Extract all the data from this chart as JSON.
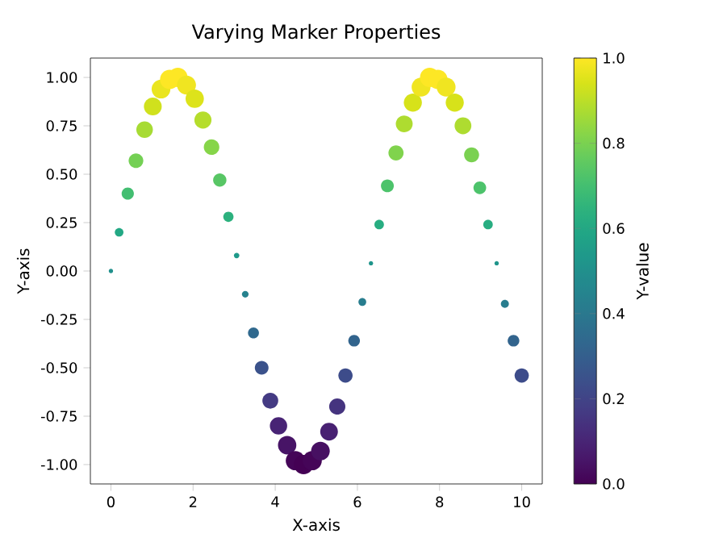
{
  "chart_data": {
    "type": "bubble",
    "title": "Varying Marker Properties",
    "xlabel": "X-axis",
    "ylabel": "Y-axis",
    "clabel": "Y-value",
    "x": [
      0,
      0.2,
      0.41,
      0.61,
      0.82,
      1.02,
      1.22,
      1.43,
      1.63,
      1.84,
      2.04,
      2.24,
      2.45,
      2.65,
      2.86,
      3.06,
      3.27,
      3.47,
      3.67,
      3.88,
      4.08,
      4.29,
      4.49,
      4.69,
      4.9,
      5.1,
      5.31,
      5.51,
      5.71,
      5.92,
      6.12,
      6.33,
      6.53,
      6.73,
      6.94,
      7.14,
      7.35,
      7.55,
      7.76,
      7.96,
      8.16,
      8.37,
      8.57,
      8.78,
      8.98,
      9.18,
      9.39,
      9.59,
      9.8,
      10
    ],
    "values": [
      0,
      0.2,
      0.4,
      0.57,
      0.73,
      0.85,
      0.94,
      0.99,
      1.0,
      0.96,
      0.89,
      0.78,
      0.64,
      0.47,
      0.28,
      0.08,
      -0.12,
      -0.32,
      -0.5,
      -0.67,
      -0.8,
      -0.9,
      -0.98,
      -1.0,
      -0.98,
      -0.93,
      -0.83,
      -0.7,
      -0.54,
      -0.36,
      -0.16,
      0.04,
      0.24,
      0.44,
      0.61,
      0.76,
      0.87,
      0.95,
      1.0,
      0.99,
      0.95,
      0.87,
      0.75,
      0.6,
      0.43,
      0.24,
      0.04,
      -0.17,
      -0.36,
      -0.54
    ],
    "sizes": [
      0.05,
      0.2,
      0.4,
      0.57,
      0.73,
      0.85,
      0.94,
      0.99,
      1.0,
      0.96,
      0.89,
      0.78,
      0.64,
      0.47,
      0.28,
      0.08,
      0.12,
      0.32,
      0.5,
      0.67,
      0.8,
      0.9,
      0.98,
      1.0,
      0.98,
      0.93,
      0.83,
      0.7,
      0.54,
      0.36,
      0.16,
      0.05,
      0.24,
      0.44,
      0.61,
      0.76,
      0.87,
      0.95,
      1.0,
      0.99,
      0.95,
      0.87,
      0.75,
      0.6,
      0.43,
      0.24,
      0.05,
      0.17,
      0.36,
      0.54
    ],
    "cvalues": [
      0.5,
      0.6,
      0.7,
      0.79,
      0.87,
      0.93,
      0.97,
      1.0,
      1.0,
      0.98,
      0.95,
      0.89,
      0.82,
      0.74,
      0.64,
      0.54,
      0.44,
      0.34,
      0.25,
      0.17,
      0.1,
      0.05,
      0.01,
      0.0,
      0.01,
      0.04,
      0.09,
      0.15,
      0.23,
      0.32,
      0.42,
      0.52,
      0.62,
      0.72,
      0.81,
      0.88,
      0.94,
      0.98,
      1.0,
      1.0,
      0.98,
      0.94,
      0.88,
      0.8,
      0.72,
      0.62,
      0.52,
      0.42,
      0.32,
      0.23
    ],
    "marker": "circle",
    "xlim": [
      -0.5,
      10.5
    ],
    "xticks": [
      0,
      2,
      4,
      6,
      8,
      10
    ],
    "ylim": [
      -1.1,
      1.1
    ],
    "yticks": [
      {
        "value": -1,
        "label": "-1.00"
      },
      {
        "value": -0.75,
        "label": "-0.75"
      },
      {
        "value": -0.5,
        "label": "-0.50"
      },
      {
        "value": -0.25,
        "label": "-0.25"
      },
      {
        "value": 0,
        "label": "0.00"
      },
      {
        "value": 0.25,
        "label": "0.25"
      },
      {
        "value": 0.5,
        "label": "0.50"
      },
      {
        "value": 0.75,
        "label": "0.75"
      },
      {
        "value": 1,
        "label": "1.00"
      }
    ],
    "clim": [
      0,
      1
    ],
    "cticks": [
      {
        "value": 0,
        "label": "0.0"
      },
      {
        "value": 0.2,
        "label": "0.2"
      },
      {
        "value": 0.4,
        "label": "0.4"
      },
      {
        "value": 0.6,
        "label": "0.6"
      },
      {
        "value": 0.8,
        "label": "0.8"
      },
      {
        "value": 1,
        "label": "1.0"
      }
    ]
  }
}
